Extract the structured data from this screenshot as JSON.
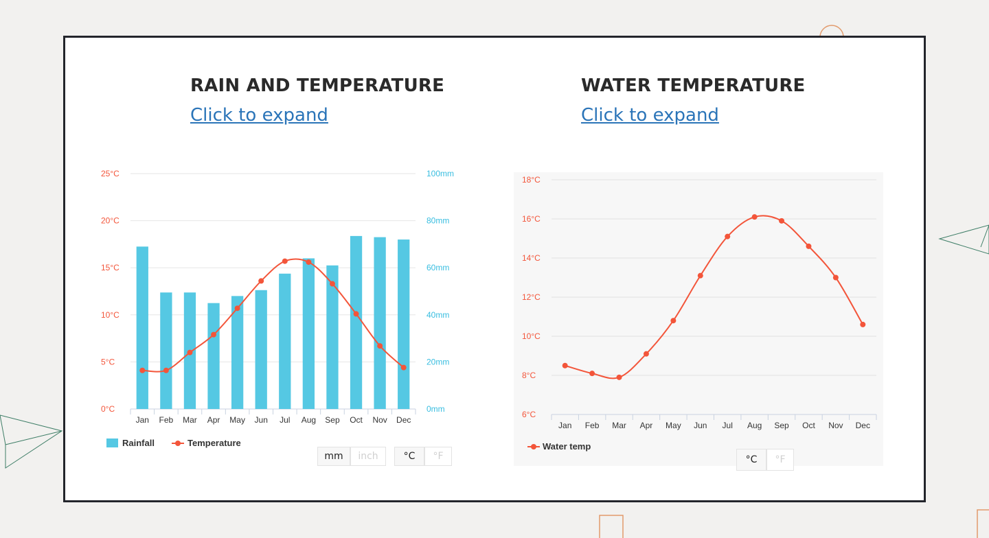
{
  "rain_section": {
    "title": "RAIN AND TEMPERATURE",
    "expand_label": "Click to expand",
    "legend_rain": "Rainfall",
    "legend_temp": "Temperature",
    "unit_buttons": [
      "mm",
      "inch"
    ],
    "temp_buttons": [
      "°C",
      "°F"
    ]
  },
  "water_section": {
    "title": "WATER TEMPERATURE",
    "expand_label": "Click to expand",
    "legend": "Water temp",
    "temp_buttons": [
      "°C",
      "°F"
    ]
  },
  "colors": {
    "rain_bar": "#55c8e3",
    "temp_line": "#f3553a",
    "left_axis_text": "#f3553a",
    "right_axis_text": "#37bde0",
    "link": "#2a74b8"
  },
  "chart_data": [
    {
      "type": "bar",
      "title": "RAIN AND TEMPERATURE",
      "categories": [
        "Jan",
        "Feb",
        "Mar",
        "Apr",
        "May",
        "Jun",
        "Jul",
        "Aug",
        "Sep",
        "Oct",
        "Nov",
        "Dec"
      ],
      "left_axis": {
        "ticks": [
          "0°C",
          "5°C",
          "10°C",
          "15°C",
          "20°C",
          "25°C"
        ],
        "ylim": [
          0,
          25
        ]
      },
      "right_axis": {
        "ticks": [
          "0mm",
          "20mm",
          "40mm",
          "60mm",
          "80mm",
          "100mm"
        ],
        "ylim": [
          0,
          100
        ]
      },
      "grid": true,
      "legend_position": "bottom-left",
      "series": [
        {
          "name": "Rainfall",
          "type": "bar",
          "axis": "right",
          "unit": "mm",
          "values": [
            69,
            49.5,
            49.5,
            45,
            48,
            50.5,
            57.5,
            64,
            61,
            73.5,
            73,
            72
          ]
        },
        {
          "name": "Temperature",
          "type": "line",
          "axis": "left",
          "unit": "°C",
          "values": [
            4.1,
            4.1,
            6.0,
            7.9,
            10.7,
            13.6,
            15.7,
            15.6,
            13.3,
            10.1,
            6.7,
            4.4
          ]
        }
      ]
    },
    {
      "type": "line",
      "title": "WATER TEMPERATURE",
      "categories": [
        "Jan",
        "Feb",
        "Mar",
        "Apr",
        "May",
        "Jun",
        "Jul",
        "Aug",
        "Sep",
        "Oct",
        "Nov",
        "Dec"
      ],
      "left_axis": {
        "ticks": [
          "6°C",
          "8°C",
          "10°C",
          "12°C",
          "14°C",
          "16°C",
          "18°C"
        ],
        "ylim": [
          6,
          18
        ]
      },
      "grid": true,
      "legend_position": "bottom-left",
      "series": [
        {
          "name": "Water temp",
          "type": "line",
          "unit": "°C",
          "values": [
            8.5,
            8.1,
            7.9,
            9.1,
            10.8,
            13.1,
            15.1,
            16.1,
            15.9,
            14.6,
            13.0,
            10.6
          ]
        }
      ]
    }
  ]
}
